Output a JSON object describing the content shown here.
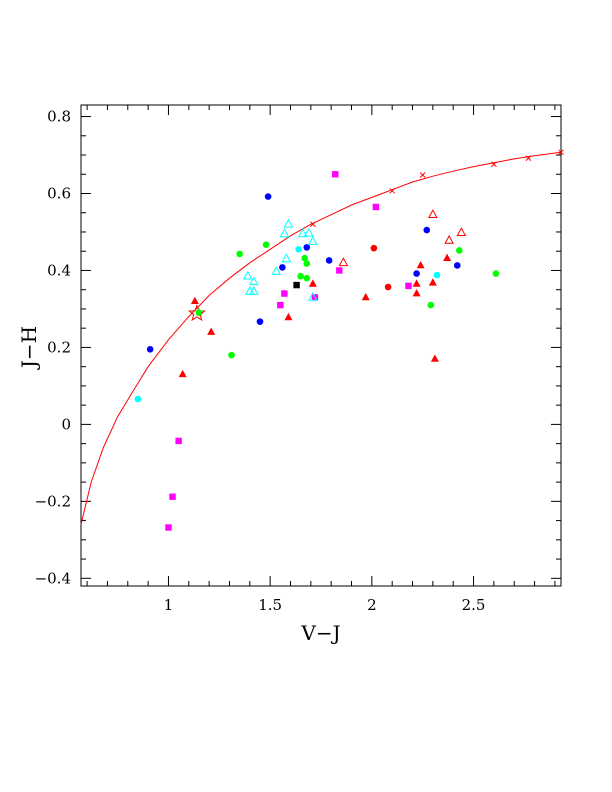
{
  "chart_data": {
    "type": "scatter",
    "title": "",
    "xlabel": "V−J",
    "ylabel": "J−H",
    "xlim": [
      0.57,
      2.93
    ],
    "ylim": [
      -0.42,
      0.83
    ],
    "grid": false,
    "xticks": [
      {
        "value": 1,
        "label": "1"
      },
      {
        "value": 1.5,
        "label": "1.5"
      },
      {
        "value": 2,
        "label": "2"
      },
      {
        "value": 2.5,
        "label": "2.5"
      }
    ],
    "yticks": [
      {
        "value": -0.4,
        "label": "−0.4"
      },
      {
        "value": -0.2,
        "label": "−0.2"
      },
      {
        "value": 0,
        "label": "0"
      },
      {
        "value": 0.2,
        "label": "0.2"
      },
      {
        "value": 0.4,
        "label": "0.4"
      },
      {
        "value": 0.6,
        "label": "0.6"
      },
      {
        "value": 0.8,
        "label": "0.8"
      }
    ],
    "curve": {
      "color": "#ff0000",
      "points": [
        [
          0.57,
          -0.26
        ],
        [
          0.62,
          -0.15
        ],
        [
          0.68,
          -0.06
        ],
        [
          0.75,
          0.02
        ],
        [
          0.83,
          0.09
        ],
        [
          0.9,
          0.15
        ],
        [
          1.0,
          0.22
        ],
        [
          1.1,
          0.28
        ],
        [
          1.2,
          0.335
        ],
        [
          1.3,
          0.38
        ],
        [
          1.4,
          0.42
        ],
        [
          1.5,
          0.455
        ],
        [
          1.6,
          0.49
        ],
        [
          1.7,
          0.52
        ],
        [
          1.8,
          0.545
        ],
        [
          1.9,
          0.57
        ],
        [
          2.0,
          0.59
        ],
        [
          2.1,
          0.61
        ],
        [
          2.2,
          0.63
        ],
        [
          2.3,
          0.645
        ],
        [
          2.4,
          0.658
        ],
        [
          2.5,
          0.67
        ],
        [
          2.6,
          0.68
        ],
        [
          2.7,
          0.69
        ],
        [
          2.8,
          0.698
        ],
        [
          2.93,
          0.707
        ]
      ],
      "cross_markers": [
        [
          1.71,
          0.52
        ],
        [
          2.1,
          0.607
        ],
        [
          2.25,
          0.648
        ],
        [
          2.6,
          0.676
        ],
        [
          2.77,
          0.692
        ],
        [
          2.93,
          0.707
        ]
      ]
    },
    "series": [
      {
        "marker": "circle",
        "color": "#0000ff",
        "points": [
          [
            0.91,
            0.195
          ],
          [
            1.49,
            0.592
          ],
          [
            1.45,
            0.267
          ],
          [
            1.56,
            0.408
          ],
          [
            1.68,
            0.46
          ],
          [
            1.79,
            0.426
          ],
          [
            2.27,
            0.505
          ],
          [
            2.22,
            0.392
          ],
          [
            2.42,
            0.413
          ]
        ]
      },
      {
        "marker": "circle",
        "color": "#00ff00",
        "points": [
          [
            1.15,
            0.29
          ],
          [
            1.31,
            0.18
          ],
          [
            1.35,
            0.443
          ],
          [
            1.48,
            0.467
          ],
          [
            1.65,
            0.385
          ],
          [
            1.67,
            0.432
          ],
          [
            1.68,
            0.418
          ],
          [
            1.68,
            0.38
          ],
          [
            2.29,
            0.31
          ],
          [
            2.43,
            0.452
          ],
          [
            2.61,
            0.392
          ]
        ]
      },
      {
        "marker": "circle",
        "color": "#00ffff",
        "points": [
          [
            0.85,
            0.066
          ],
          [
            1.64,
            0.455
          ],
          [
            2.32,
            0.388
          ]
        ]
      },
      {
        "marker": "circle",
        "color": "#ff0000",
        "points": [
          [
            2.01,
            0.458
          ],
          [
            2.08,
            0.357
          ]
        ]
      },
      {
        "marker": "square",
        "color": "#ff00ff",
        "points": [
          [
            1.0,
            -0.268
          ],
          [
            1.02,
            -0.188
          ],
          [
            1.05,
            -0.043
          ],
          [
            1.55,
            0.31
          ],
          [
            1.57,
            0.34
          ],
          [
            1.72,
            0.33
          ],
          [
            1.82,
            0.65
          ],
          [
            1.84,
            0.4
          ],
          [
            2.02,
            0.565
          ],
          [
            2.18,
            0.36
          ]
        ]
      },
      {
        "marker": "square",
        "color": "#000000",
        "points": [
          [
            1.63,
            0.362
          ]
        ]
      },
      {
        "marker": "triangle-filled",
        "color": "#ff0000",
        "points": [
          [
            1.07,
            0.13
          ],
          [
            1.13,
            0.32
          ],
          [
            1.21,
            0.24
          ],
          [
            1.59,
            0.278
          ],
          [
            1.71,
            0.365
          ],
          [
            1.97,
            0.33
          ],
          [
            2.22,
            0.34
          ],
          [
            2.22,
            0.365
          ],
          [
            2.24,
            0.413
          ],
          [
            2.3,
            0.368
          ],
          [
            2.31,
            0.17
          ],
          [
            2.37,
            0.432
          ]
        ]
      },
      {
        "marker": "triangle-open",
        "color": "#ff0000",
        "points": [
          [
            1.86,
            0.42
          ],
          [
            2.3,
            0.545
          ],
          [
            2.38,
            0.478
          ],
          [
            2.44,
            0.498
          ]
        ]
      },
      {
        "marker": "triangle-open",
        "color": "#00ffff",
        "points": [
          [
            1.39,
            0.385
          ],
          [
            1.4,
            0.345
          ],
          [
            1.42,
            0.37
          ],
          [
            1.42,
            0.345
          ],
          [
            1.53,
            0.397
          ],
          [
            1.57,
            0.495
          ],
          [
            1.58,
            0.43
          ],
          [
            1.59,
            0.52
          ],
          [
            1.66,
            0.495
          ],
          [
            1.69,
            0.497
          ],
          [
            1.71,
            0.475
          ],
          [
            1.71,
            0.33
          ]
        ]
      },
      {
        "marker": "star",
        "color": "#ff0000",
        "points": [
          [
            1.14,
            0.288
          ]
        ]
      },
      {
        "marker": "star-filled",
        "color": "#00ff00",
        "points": [
          [
            1.15,
            0.292
          ]
        ]
      }
    ]
  }
}
